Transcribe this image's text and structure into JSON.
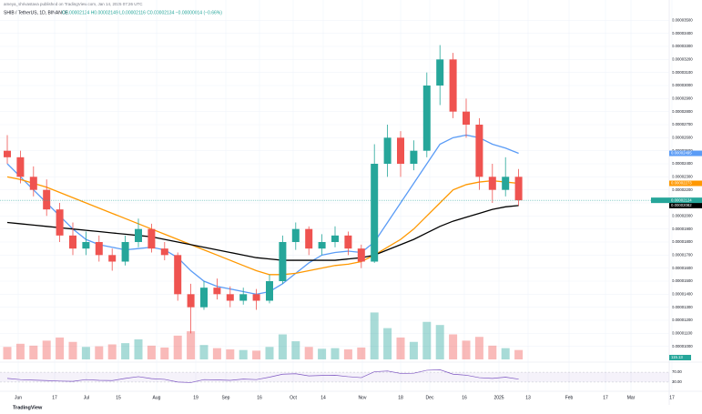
{
  "chart_data": {
    "type": "candlestick",
    "header": "ameya_shrivastava published on TradingView.com, Jan 14, 2025 07:26 UTC",
    "symbol": "SHIB / TetherUS, 1D, BINANCE",
    "ohlc_text": "O0.00002124 H0.00002149 L0.00002116 C0.00002134 −0.00000014 (−0.66%)",
    "footer": "TradingView",
    "up_color": "#26a69a",
    "down_color": "#ef5350",
    "ylim": [
      9e-06,
      3.6e-05
    ],
    "yticks": [
      {
        "value": 1e-05,
        "label": "0.00001000"
      },
      {
        "value": 1.1e-05,
        "label": "0.00001100"
      },
      {
        "value": 1.2e-05,
        "label": "0.00001200"
      },
      {
        "value": 1.3e-05,
        "label": "0.00001300"
      },
      {
        "value": 1.4e-05,
        "label": "0.00001400"
      },
      {
        "value": 1.5e-05,
        "label": "0.00001500"
      },
      {
        "value": 1.6e-05,
        "label": "0.00001600"
      },
      {
        "value": 1.7e-05,
        "label": "0.00001700"
      },
      {
        "value": 1.8e-05,
        "label": "0.00001800"
      },
      {
        "value": 1.9e-05,
        "label": "0.00001900"
      },
      {
        "value": 2e-05,
        "label": "0.00002000"
      },
      {
        "value": 2.1e-05,
        "label": "0.00002100"
      },
      {
        "value": 2.2e-05,
        "label": "0.00002200"
      },
      {
        "value": 2.3e-05,
        "label": "0.00002300"
      },
      {
        "value": 2.4e-05,
        "label": "0.00002400"
      },
      {
        "value": 2.5e-05,
        "label": "0.00002500"
      },
      {
        "value": 2.6e-05,
        "label": "0.00002600"
      },
      {
        "value": 2.7e-05,
        "label": "0.00002700"
      },
      {
        "value": 2.8e-05,
        "label": "0.00002800"
      },
      {
        "value": 2.9e-05,
        "label": "0.00002900"
      },
      {
        "value": 3e-05,
        "label": "0.00003000"
      },
      {
        "value": 3.1e-05,
        "label": "0.00003100"
      },
      {
        "value": 3.2e-05,
        "label": "0.00003200"
      },
      {
        "value": 3.3e-05,
        "label": "0.00003300"
      },
      {
        "value": 3.4e-05,
        "label": "0.00003400"
      },
      {
        "value": 3.5e-05,
        "label": "0.00003500"
      }
    ],
    "x_labels": [
      "Jun",
      "17",
      "Jul",
      "15",
      "Aug",
      "19",
      "Sep",
      "16",
      "Oct",
      "14",
      "Nov",
      "18",
      "Dec",
      "16",
      "2025",
      "13",
      "Feb",
      "17",
      "Mar",
      "17"
    ],
    "price_tag": "0.00002124",
    "volume_tag": "115.13",
    "vlim": [
      0,
      8
    ],
    "candles": [
      {
        "open": 2.5e-05,
        "high": 2.62e-05,
        "low": 2.4e-05,
        "close": 2.45e-05,
        "volume": 2.0
      },
      {
        "open": 2.45e-05,
        "high": 2.5e-05,
        "low": 2.25e-05,
        "close": 2.3e-05,
        "volume": 2.5
      },
      {
        "open": 2.3e-05,
        "high": 2.38e-05,
        "low": 2.15e-05,
        "close": 2.2e-05,
        "volume": 2.2
      },
      {
        "open": 2.2e-05,
        "high": 2.28e-05,
        "low": 2e-05,
        "close": 2.05e-05,
        "volume": 3.0
      },
      {
        "open": 2.05e-05,
        "high": 2.1e-05,
        "low": 1.8e-05,
        "close": 1.85e-05,
        "volume": 3.5
      },
      {
        "open": 1.85e-05,
        "high": 1.95e-05,
        "low": 1.7e-05,
        "close": 1.75e-05,
        "volume": 2.8
      },
      {
        "open": 1.75e-05,
        "high": 1.88e-05,
        "low": 1.7e-05,
        "close": 1.8e-05,
        "volume": 2.0
      },
      {
        "open": 1.8e-05,
        "high": 1.85e-05,
        "low": 1.65e-05,
        "close": 1.7e-05,
        "volume": 2.1
      },
      {
        "open": 1.7e-05,
        "high": 1.75e-05,
        "low": 1.58e-05,
        "close": 1.65e-05,
        "volume": 2.4
      },
      {
        "open": 1.65e-05,
        "high": 1.85e-05,
        "low": 1.62e-05,
        "close": 1.8e-05,
        "volume": 2.6
      },
      {
        "open": 1.8e-05,
        "high": 1.98e-05,
        "low": 1.76e-05,
        "close": 1.9e-05,
        "volume": 3.2
      },
      {
        "open": 1.9e-05,
        "high": 1.94e-05,
        "low": 1.72e-05,
        "close": 1.75e-05,
        "volume": 2.2
      },
      {
        "open": 1.75e-05,
        "high": 1.8e-05,
        "low": 1.66e-05,
        "close": 1.7e-05,
        "volume": 1.9
      },
      {
        "open": 1.7e-05,
        "high": 1.72e-05,
        "low": 1.35e-05,
        "close": 1.4e-05,
        "volume": 3.8
      },
      {
        "open": 1.4e-05,
        "high": 1.48e-05,
        "low": 1.1e-05,
        "close": 1.3e-05,
        "volume": 4.5
      },
      {
        "open": 1.3e-05,
        "high": 1.5e-05,
        "low": 1.28e-05,
        "close": 1.45e-05,
        "volume": 2.3
      },
      {
        "open": 1.45e-05,
        "high": 1.52e-05,
        "low": 1.36e-05,
        "close": 1.4e-05,
        "volume": 1.8
      },
      {
        "open": 1.4e-05,
        "high": 1.46e-05,
        "low": 1.3e-05,
        "close": 1.35e-05,
        "volume": 1.6
      },
      {
        "open": 1.35e-05,
        "high": 1.45e-05,
        "low": 1.32e-05,
        "close": 1.4e-05,
        "volume": 1.5
      },
      {
        "open": 1.4e-05,
        "high": 1.44e-05,
        "low": 1.28e-05,
        "close": 1.35e-05,
        "volume": 1.4
      },
      {
        "open": 1.35e-05,
        "high": 1.55e-05,
        "low": 1.33e-05,
        "close": 1.5e-05,
        "volume": 2.0
      },
      {
        "open": 1.5e-05,
        "high": 1.85e-05,
        "low": 1.48e-05,
        "close": 1.8e-05,
        "volume": 4.0
      },
      {
        "open": 1.8e-05,
        "high": 1.95e-05,
        "low": 1.74e-05,
        "close": 1.9e-05,
        "volume": 2.9
      },
      {
        "open": 1.9e-05,
        "high": 1.92e-05,
        "low": 1.7e-05,
        "close": 1.75e-05,
        "volume": 2.0
      },
      {
        "open": 1.75e-05,
        "high": 1.86e-05,
        "low": 1.7e-05,
        "close": 1.8e-05,
        "volume": 1.7
      },
      {
        "open": 1.8e-05,
        "high": 1.92e-05,
        "low": 1.76e-05,
        "close": 1.85e-05,
        "volume": 1.8
      },
      {
        "open": 1.85e-05,
        "high": 1.88e-05,
        "low": 1.7e-05,
        "close": 1.75e-05,
        "volume": 1.6
      },
      {
        "open": 1.75e-05,
        "high": 1.78e-05,
        "low": 1.6e-05,
        "close": 1.65e-05,
        "volume": 1.9
      },
      {
        "open": 1.65e-05,
        "high": 2.55e-05,
        "low": 1.64e-05,
        "close": 2.4e-05,
        "volume": 7.5
      },
      {
        "open": 2.4e-05,
        "high": 2.7e-05,
        "low": 2.3e-05,
        "close": 2.6e-05,
        "volume": 5.0
      },
      {
        "open": 2.6e-05,
        "high": 2.65e-05,
        "low": 2.3e-05,
        "close": 2.4e-05,
        "volume": 3.5
      },
      {
        "open": 2.4e-05,
        "high": 2.58e-05,
        "low": 2.35e-05,
        "close": 2.5e-05,
        "volume": 2.8
      },
      {
        "open": 2.5e-05,
        "high": 3.1e-05,
        "low": 2.45e-05,
        "close": 3e-05,
        "volume": 6.0
      },
      {
        "open": 3e-05,
        "high": 3.31e-05,
        "low": 2.85e-05,
        "close": 3.2e-05,
        "volume": 5.5
      },
      {
        "open": 3.2e-05,
        "high": 3.25e-05,
        "low": 2.75e-05,
        "close": 2.8e-05,
        "volume": 4.0
      },
      {
        "open": 2.8e-05,
        "high": 2.9e-05,
        "low": 2.6e-05,
        "close": 2.7e-05,
        "volume": 3.0
      },
      {
        "open": 2.7e-05,
        "high": 2.75e-05,
        "low": 2.2e-05,
        "close": 2.3e-05,
        "volume": 3.6
      },
      {
        "open": 2.3e-05,
        "high": 2.4e-05,
        "low": 2.1e-05,
        "close": 2.2e-05,
        "volume": 2.2
      },
      {
        "open": 2.2e-05,
        "high": 2.45e-05,
        "low": 2.15e-05,
        "close": 2.3e-05,
        "volume": 1.8
      },
      {
        "open": 2.3e-05,
        "high": 2.36e-05,
        "low": 2.08e-05,
        "close": 2.12e-05,
        "volume": 1.5
      }
    ],
    "ma_lines": [
      {
        "tag": "0.00002495",
        "color": "#5b9cf6",
        "values": [
          2.4e-05,
          2.3e-05,
          2.2e-05,
          2.1e-05,
          2e-05,
          1.9e-05,
          1.82e-05,
          1.78e-05,
          1.76e-05,
          1.74e-05,
          1.75e-05,
          1.76e-05,
          1.74e-05,
          1.68e-05,
          1.58e-05,
          1.5e-05,
          1.46e-05,
          1.44e-05,
          1.42e-05,
          1.4e-05,
          1.42e-05,
          1.48e-05,
          1.56e-05,
          1.64e-05,
          1.7e-05,
          1.72e-05,
          1.73e-05,
          1.72e-05,
          1.8e-05,
          1.95e-05,
          2.1e-05,
          2.25e-05,
          2.4e-05,
          2.55e-05,
          2.6e-05,
          2.62e-05,
          2.6e-05,
          2.55e-05,
          2.52e-05,
          2.48e-05
        ]
      },
      {
        "tag": "0.00002273",
        "color": "#ff9800",
        "values": [
          2.3e-05,
          2.28e-05,
          2.25e-05,
          2.22e-05,
          2.18e-05,
          2.14e-05,
          2.1e-05,
          2.06e-05,
          2.02e-05,
          1.98e-05,
          1.94e-05,
          1.9e-05,
          1.86e-05,
          1.82e-05,
          1.78e-05,
          1.74e-05,
          1.7e-05,
          1.66e-05,
          1.62e-05,
          1.58e-05,
          1.55e-05,
          1.55e-05,
          1.56e-05,
          1.58e-05,
          1.6e-05,
          1.62e-05,
          1.63e-05,
          1.65e-05,
          1.7e-05,
          1.76e-05,
          1.82e-05,
          1.9e-05,
          2e-05,
          2.1e-05,
          2.2e-05,
          2.24e-05,
          2.26e-05,
          2.27e-05,
          2.26e-05,
          2.25e-05
        ]
      },
      {
        "tag": "0.00002082",
        "color": "#000000",
        "values": [
          1.95e-05,
          1.94e-05,
          1.93e-05,
          1.92e-05,
          1.91e-05,
          1.9e-05,
          1.89e-05,
          1.88e-05,
          1.87e-05,
          1.86e-05,
          1.85e-05,
          1.84e-05,
          1.82e-05,
          1.8e-05,
          1.78e-05,
          1.76e-05,
          1.74e-05,
          1.72e-05,
          1.7e-05,
          1.68e-05,
          1.67e-05,
          1.66e-05,
          1.66e-05,
          1.66e-05,
          1.66e-05,
          1.66e-05,
          1.67e-05,
          1.68e-05,
          1.7e-05,
          1.74e-05,
          1.78e-05,
          1.82e-05,
          1.87e-05,
          1.92e-05,
          1.96e-05,
          1.99e-05,
          2.02e-05,
          2.05e-05,
          2.07e-05,
          2.08e-05
        ]
      }
    ],
    "rsi": {
      "color": "#7e57c2",
      "ylim": [
        0,
        100
      ],
      "yticks": [
        {
          "value": 70,
          "label": "70.00"
        },
        {
          "value": 30,
          "label": "30.00"
        }
      ],
      "values": [
        45,
        40,
        38,
        36,
        34,
        33,
        40,
        37,
        36,
        45,
        52,
        44,
        41,
        30,
        28,
        40,
        39,
        37,
        42,
        40,
        50,
        62,
        64,
        55,
        57,
        58,
        52,
        48,
        72,
        75,
        65,
        66,
        78,
        80,
        62,
        58,
        48,
        45,
        50,
        42
      ]
    }
  }
}
